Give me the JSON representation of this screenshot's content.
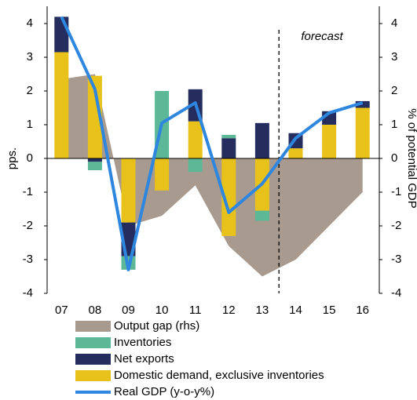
{
  "chart_data": {
    "type": "bar",
    "y_label": "pps.",
    "y2_label": "% of potential GDP",
    "annotation": {
      "text": "forecast",
      "from_category": "14"
    },
    "categories": [
      "07",
      "08",
      "09",
      "10",
      "11",
      "12",
      "13",
      "14",
      "15",
      "16"
    ],
    "ylim": [
      -4,
      4
    ],
    "yticks": [
      -4,
      -3,
      -2,
      -1,
      0,
      1,
      2,
      3,
      4
    ],
    "y2lim": [
      -4,
      4
    ],
    "y2ticks": [
      -4,
      -3,
      -2,
      -1,
      0,
      1,
      2,
      3,
      4
    ],
    "series": [
      {
        "name": "Output gap (rhs)",
        "type": "area",
        "axis": "y2",
        "color": "#a89a8e",
        "values": [
          2.35,
          2.5,
          -2.0,
          -1.7,
          -0.8,
          -2.6,
          -3.5,
          -3.0,
          -2.0,
          -1.0
        ]
      },
      {
        "name": "Inventories",
        "type": "bar",
        "color": "#5cb896",
        "values": [
          0,
          -0.25,
          -0.4,
          2.0,
          -0.4,
          0.1,
          -0.3,
          0,
          0,
          0
        ]
      },
      {
        "name": "Net exports",
        "type": "bar",
        "color": "#252d5e",
        "values": [
          1.05,
          -0.1,
          -1.0,
          0,
          0.95,
          0.6,
          1.05,
          0.45,
          0.4,
          0.2
        ]
      },
      {
        "name": "Domestic demand, exclusive inventories",
        "type": "bar",
        "color": "#e8c21a",
        "values": [
          3.15,
          2.45,
          -1.9,
          -0.95,
          1.1,
          -2.3,
          -1.55,
          0.3,
          1.0,
          1.5
        ]
      },
      {
        "name": "Real GDP (y-o-y%)",
        "type": "line",
        "color": "#2e86de",
        "values": [
          4.2,
          2.05,
          -3.3,
          1.05,
          1.65,
          -1.6,
          -0.75,
          0.6,
          1.35,
          1.65
        ]
      }
    ]
  }
}
